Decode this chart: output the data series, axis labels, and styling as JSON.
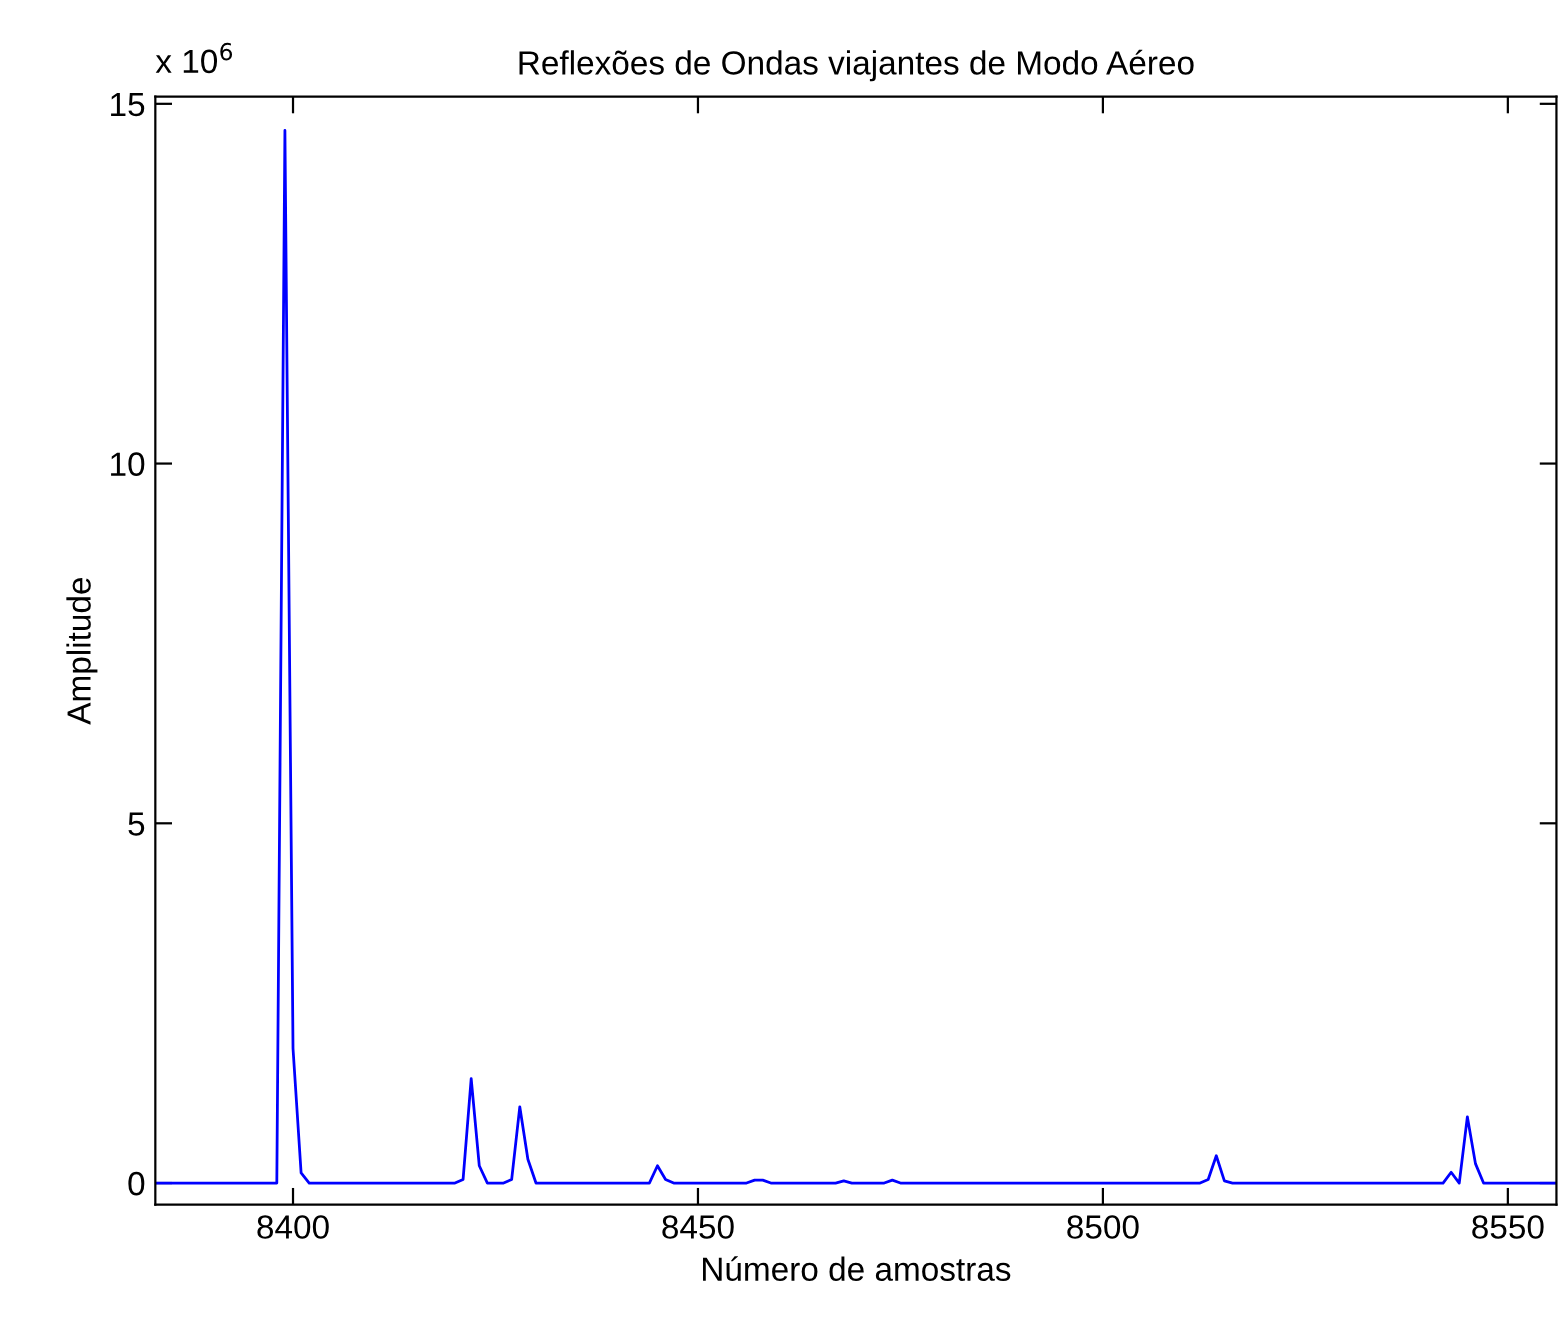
{
  "chart_data": {
    "type": "line",
    "title": "Reflexões de Ondas viajantes de Modo Aéreo",
    "xlabel": "Número de amostras",
    "ylabel": "Amplitude",
    "annotations": [
      "x 10$^{6}$"
    ],
    "series": [
      {
        "color": "#0000ff",
        "x": [
          8383,
          8398,
          8399,
          8400,
          8401,
          8402,
          8420,
          8421,
          8422,
          8423,
          8424,
          8426,
          8427,
          8428,
          8429,
          8430,
          8444,
          8445,
          8446,
          8447,
          8456,
          8457,
          8458,
          8459,
          8467,
          8468,
          8469,
          8473,
          8474,
          8475,
          8512,
          8513,
          8514,
          8515,
          8516,
          8542,
          8543,
          8544,
          8545,
          8546,
          8547,
          8556
        ],
        "values": [
          0,
          0,
          14.63,
          1.87,
          0.14,
          0,
          0,
          0.05,
          1.45,
          0.24,
          0,
          0,
          0.05,
          1.06,
          0.33,
          0,
          0,
          0.24,
          0.05,
          0,
          0,
          0.04,
          0.04,
          0,
          0,
          0.03,
          0,
          0,
          0.04,
          0,
          0,
          0.05,
          0.38,
          0.03,
          0,
          0,
          0.15,
          0,
          0.92,
          0.27,
          0,
          0
        ]
      }
    ],
    "xlim": [
      8383,
      8556
    ],
    "ylim": [
      -0.3,
      15.1
    ],
    "xticks": [
      8400,
      8450,
      8500,
      8550
    ],
    "yticks": [
      0,
      5,
      10,
      15
    ],
    "grid": false,
    "legend": false,
    "marker": "none",
    "line_style": "solid"
  }
}
